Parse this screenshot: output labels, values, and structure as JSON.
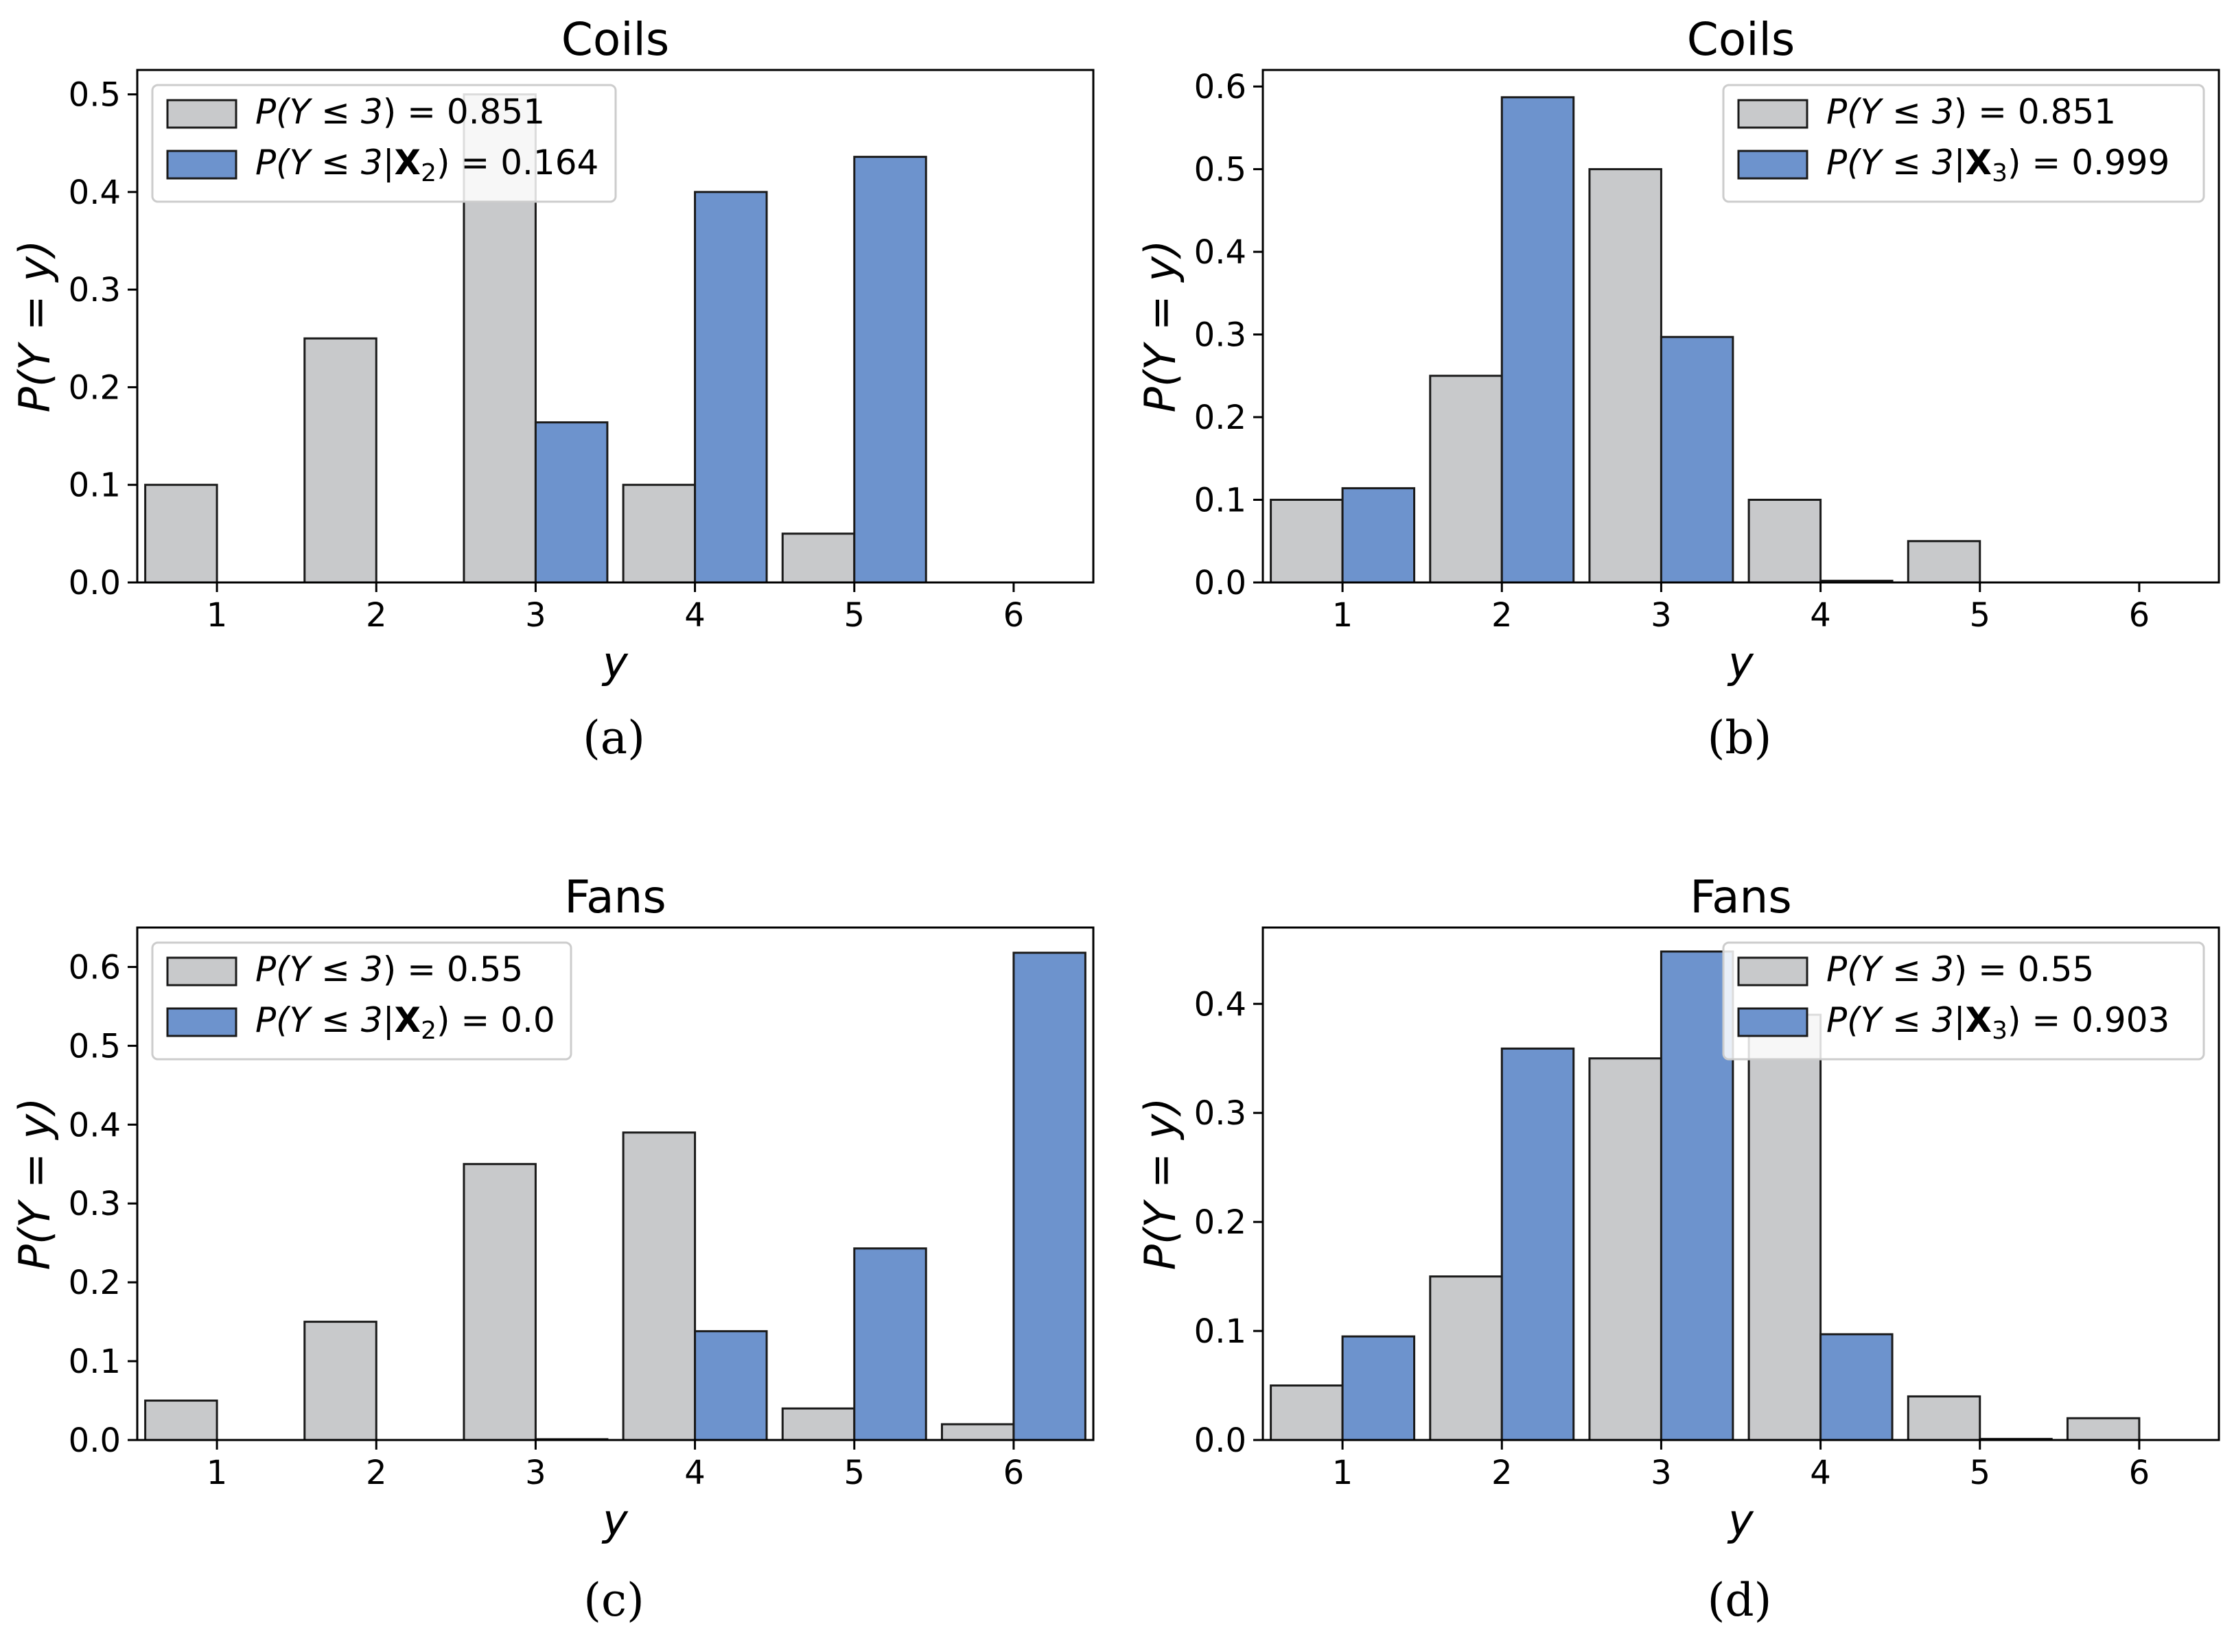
{
  "colors": {
    "prior": "#c8c9cb",
    "conditional": "#6d93cd",
    "edge": "#1a1a1a"
  },
  "chart_data": [
    {
      "type": "bar",
      "panel_label": "(a)",
      "title": "Coils",
      "xlabel": "y",
      "ylabel": "P(Y = y)",
      "categories": [
        1,
        2,
        3,
        4,
        5,
        6
      ],
      "xlim": [
        0.5,
        6.5
      ],
      "ylim": [
        0,
        0.525
      ],
      "yticks": [
        0.0,
        0.1,
        0.2,
        0.3,
        0.4,
        0.5
      ],
      "ytick_labels": [
        "0.0",
        "0.1",
        "0.2",
        "0.3",
        "0.4",
        "0.5"
      ],
      "legend_position": "upper-left",
      "series": [
        {
          "name": "P(Y ≤ 3) = 0.851",
          "name_parts": {
            "prefix": "P(Y ≤ 3",
            "bold": "",
            "sub": "",
            "value": ") = 0.851"
          },
          "color": "#c8c9cb",
          "values": [
            0.1,
            0.25,
            0.5,
            0.1,
            0.05,
            0.0
          ]
        },
        {
          "name": "P(Y ≤ 3|X2) = 0.164",
          "name_parts": {
            "prefix": "P(Y ≤ 3|",
            "bold": "X",
            "sub": "2",
            "value": ") = 0.164"
          },
          "color": "#6d93cd",
          "values": [
            0.0,
            0.0,
            0.164,
            0.4,
            0.436,
            0.0
          ]
        }
      ]
    },
    {
      "type": "bar",
      "panel_label": "(b)",
      "title": "Coils",
      "xlabel": "y",
      "ylabel": "P(Y = y)",
      "categories": [
        1,
        2,
        3,
        4,
        5,
        6
      ],
      "xlim": [
        0.5,
        6.5
      ],
      "ylim": [
        0,
        0.62
      ],
      "yticks": [
        0.0,
        0.1,
        0.2,
        0.3,
        0.4,
        0.5,
        0.6
      ],
      "ytick_labels": [
        "0.0",
        "0.1",
        "0.2",
        "0.3",
        "0.4",
        "0.5",
        "0.6"
      ],
      "legend_position": "upper-right",
      "series": [
        {
          "name": "P(Y ≤ 3) = 0.851",
          "name_parts": {
            "prefix": "P(Y ≤ 3",
            "bold": "",
            "sub": "",
            "value": ") = 0.851"
          },
          "color": "#c8c9cb",
          "values": [
            0.1,
            0.25,
            0.5,
            0.1,
            0.05,
            0.0
          ]
        },
        {
          "name": "P(Y ≤ 3|X3) = 0.999",
          "name_parts": {
            "prefix": "P(Y ≤ 3|",
            "bold": "X",
            "sub": "3",
            "value": ") = 0.999"
          },
          "color": "#6d93cd",
          "values": [
            0.114,
            0.587,
            0.297,
            0.002,
            0.0,
            0.0
          ]
        }
      ]
    },
    {
      "type": "bar",
      "panel_label": "(c)",
      "title": "Fans",
      "xlabel": "y",
      "ylabel": "P(Y = y)",
      "categories": [
        1,
        2,
        3,
        4,
        5,
        6
      ],
      "xlim": [
        0.5,
        6.5
      ],
      "ylim": [
        0,
        0.65
      ],
      "yticks": [
        0.0,
        0.1,
        0.2,
        0.3,
        0.4,
        0.5,
        0.6
      ],
      "ytick_labels": [
        "0.0",
        "0.1",
        "0.2",
        "0.3",
        "0.4",
        "0.5",
        "0.6"
      ],
      "legend_position": "upper-left",
      "series": [
        {
          "name": "P(Y ≤ 3) = 0.55",
          "name_parts": {
            "prefix": "P(Y ≤ 3",
            "bold": "",
            "sub": "",
            "value": ") = 0.55"
          },
          "color": "#c8c9cb",
          "values": [
            0.05,
            0.15,
            0.35,
            0.39,
            0.04,
            0.02
          ]
        },
        {
          "name": "P(Y ≤ 3|X2) = 0.0",
          "name_parts": {
            "prefix": "P(Y ≤ 3|",
            "bold": "X",
            "sub": "2",
            "value": ") = 0.0"
          },
          "color": "#6d93cd",
          "values": [
            0.0,
            0.0,
            0.001,
            0.138,
            0.243,
            0.618
          ]
        }
      ]
    },
    {
      "type": "bar",
      "panel_label": "(d)",
      "title": "Fans",
      "xlabel": "y",
      "ylabel": "P(Y = y)",
      "categories": [
        1,
        2,
        3,
        4,
        5,
        6
      ],
      "xlim": [
        0.5,
        6.5
      ],
      "ylim": [
        0,
        0.47
      ],
      "yticks": [
        0.0,
        0.1,
        0.2,
        0.3,
        0.4
      ],
      "ytick_labels": [
        "0.0",
        "0.1",
        "0.2",
        "0.3",
        "0.4"
      ],
      "legend_position": "upper-right",
      "series": [
        {
          "name": "P(Y ≤ 3) = 0.55",
          "name_parts": {
            "prefix": "P(Y ≤ 3",
            "bold": "",
            "sub": "",
            "value": ") = 0.55"
          },
          "color": "#c8c9cb",
          "values": [
            0.05,
            0.15,
            0.35,
            0.39,
            0.04,
            0.02
          ]
        },
        {
          "name": "P(Y ≤ 3|X3) = 0.903",
          "name_parts": {
            "prefix": "P(Y ≤ 3|",
            "bold": "X",
            "sub": "3",
            "value": ") = 0.903"
          },
          "color": "#6d93cd",
          "values": [
            0.095,
            0.359,
            0.448,
            0.097,
            0.001,
            0.0
          ]
        }
      ]
    }
  ]
}
